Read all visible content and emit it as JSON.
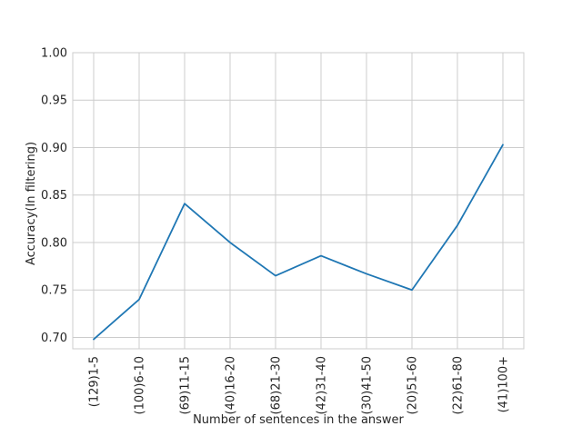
{
  "chart_data": {
    "type": "line",
    "categories": [
      "(129)1-5",
      "(100)6-10",
      "(69)11-15",
      "(40)16-20",
      "(68)21-30",
      "(42)31-40",
      "(30)41-50",
      "(20)51-60",
      "(22)61-80",
      "(41)100+"
    ],
    "series": [
      {
        "values": [
          0.698,
          0.74,
          0.841,
          0.8,
          0.765,
          0.786,
          0.767,
          0.75,
          0.818,
          0.903
        ],
        "color": "#1f77b4"
      }
    ],
    "xlabel": "Number of sentences in the answer",
    "ylabel": "Accuracy(In filtering)",
    "ylim": [
      0.688,
      1.0
    ],
    "yticks": [
      "0.70",
      "0.75",
      "0.80",
      "0.85",
      "0.90",
      "0.95",
      "1.00"
    ],
    "grid": true
  }
}
